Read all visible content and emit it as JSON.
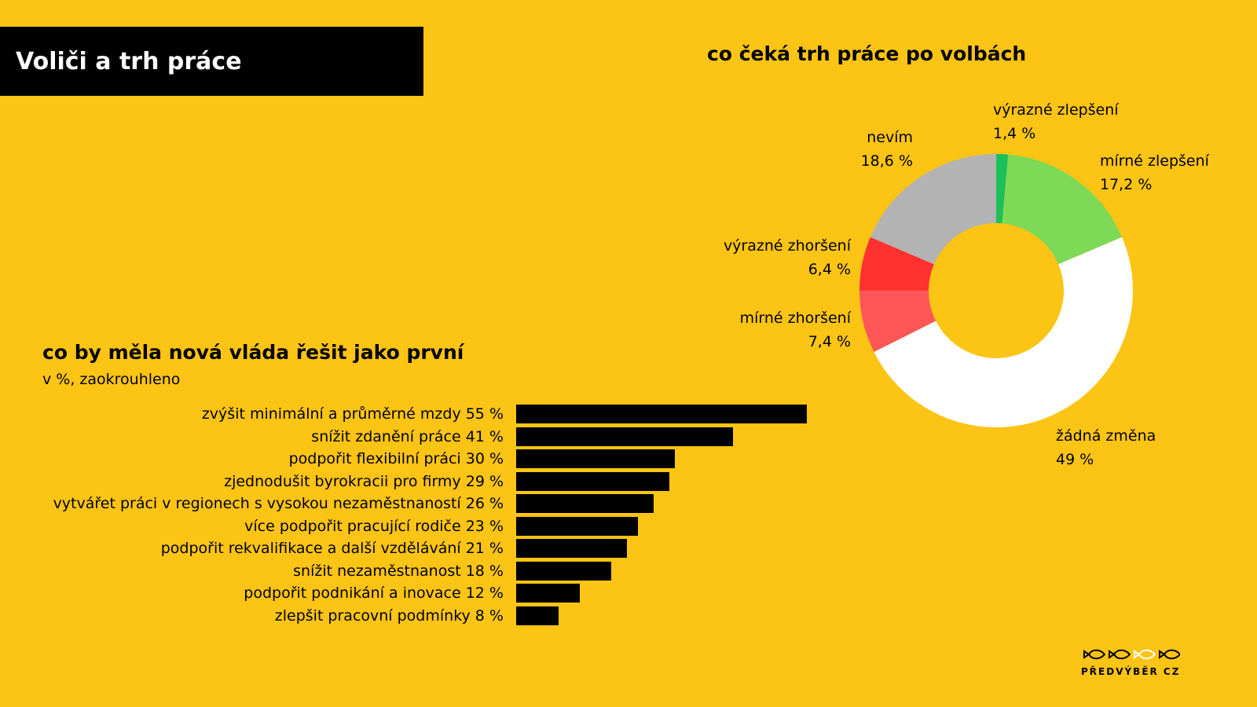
{
  "header": {
    "title": "Voliči a trh práce"
  },
  "donut": {
    "title": "co čeká trh práce po volbách"
  },
  "bars": {
    "title": "co by měla nová vláda řešit jako první",
    "subtitle": "v %, zaokrouhleno"
  },
  "logo": {
    "text": "PŘEDVÝBĚR CZ"
  },
  "colors": {
    "background": "#FCC414",
    "bar": "#000000",
    "vyrazne_zlepseni": "#1DBF5A",
    "mirne_zlepseni": "#7ED957",
    "zadna_zmena": "#FFFFFF",
    "mirne_zhorseni": "#FF5757",
    "vyrazne_zhorseni": "#FF3131",
    "nevim": "#B3B3B3"
  },
  "chart_data": [
    {
      "type": "pie",
      "title": "co čeká trh práce po volbách",
      "slices": [
        {
          "label": "výrazné zlepšení",
          "value": 1.4,
          "value_label": "1,4 %",
          "color": "#1DBF5A"
        },
        {
          "label": "mírné zlepšení",
          "value": 17.2,
          "value_label": "17,2 %",
          "color": "#7ED957"
        },
        {
          "label": "žádná změna",
          "value": 49,
          "value_label": "49 %",
          "color": "#FFFFFF"
        },
        {
          "label": "mírné zhoršení",
          "value": 7.4,
          "value_label": "7,4 %",
          "color": "#FF5757"
        },
        {
          "label": "výrazné zhoršení",
          "value": 6.4,
          "value_label": "6,4 %",
          "color": "#FF3131"
        },
        {
          "label": "nevím",
          "value": 18.6,
          "value_label": "18,6 %",
          "color": "#B3B3B3"
        }
      ]
    },
    {
      "type": "bar",
      "orientation": "horizontal",
      "title": "co by měla nová vláda řešit jako první",
      "subtitle": "v %, zaokrouhleno",
      "categories": [
        "zvýšit minimální a průměrné mzdy 55 %",
        "snížit zdanění práce 41 %",
        "podpořit flexibilní práci 30 %",
        "zjednodušit byrokracii pro firmy 29 %",
        "vytvářet práci v regionech s vysokou nezaměstnaností 26 %",
        "více podpořit pracující rodiče 23 %",
        "podpořit rekvalifikace a další vzdělávání 21 %",
        "snížit nezaměstnanost 18 %",
        "podpořit podnikání a inovace 12 %",
        "zlepšit pracovní podmínky 8 %"
      ],
      "values": [
        55,
        41,
        30,
        29,
        26,
        23,
        21,
        18,
        12,
        8
      ]
    }
  ]
}
